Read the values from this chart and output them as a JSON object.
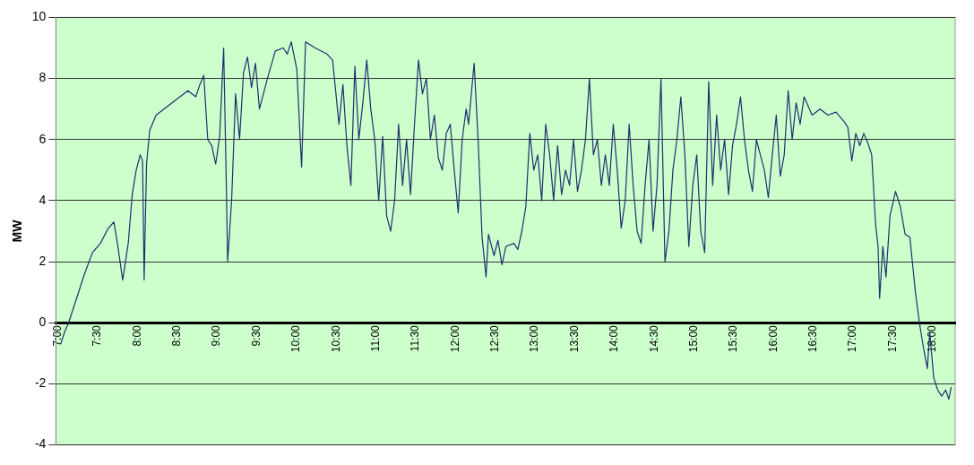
{
  "chart_data": {
    "type": "line",
    "ylabel": "MW",
    "grid": "y",
    "legend": false,
    "marker": "none",
    "line_style": "solid",
    "xlim": [
      6.94,
      18.25
    ],
    "ylim": [
      -4,
      10
    ],
    "yticks": [
      -4,
      -2,
      0,
      2,
      4,
      6,
      8,
      10
    ],
    "xticks": [
      {
        "value": 7,
        "label": "7:00"
      },
      {
        "value": 7.5,
        "label": "7:30"
      },
      {
        "value": 8,
        "label": "8:00"
      },
      {
        "value": 8.5,
        "label": "8:30"
      },
      {
        "value": 9,
        "label": "9:00"
      },
      {
        "value": 9.5,
        "label": "9:30"
      },
      {
        "value": 10,
        "label": "10:00"
      },
      {
        "value": 10.5,
        "label": "10:30"
      },
      {
        "value": 11,
        "label": "11:00"
      },
      {
        "value": 11.5,
        "label": "11:30"
      },
      {
        "value": 12,
        "label": "12:00"
      },
      {
        "value": 12.5,
        "label": "12:30"
      },
      {
        "value": 13,
        "label": "13:00"
      },
      {
        "value": 13.5,
        "label": "13:30"
      },
      {
        "value": 14,
        "label": "14:00"
      },
      {
        "value": 14.5,
        "label": "14:30"
      },
      {
        "value": 15,
        "label": "15:00"
      },
      {
        "value": 15.5,
        "label": "15:30"
      },
      {
        "value": 16,
        "label": "16:00"
      },
      {
        "value": 16.5,
        "label": "16:30"
      },
      {
        "value": 17,
        "label": "17:00"
      },
      {
        "value": 17.5,
        "label": "17:30"
      },
      {
        "value": 18,
        "label": "18:00"
      }
    ],
    "x": [
      7.0,
      7.05,
      7.1,
      7.2,
      7.3,
      7.4,
      7.5,
      7.6,
      7.67,
      7.72,
      7.78,
      7.85,
      7.9,
      7.95,
      8.0,
      8.03,
      8.05,
      8.08,
      8.12,
      8.2,
      8.35,
      8.5,
      8.6,
      8.7,
      8.75,
      8.8,
      8.85,
      8.9,
      8.95,
      9.0,
      9.05,
      9.08,
      9.1,
      9.15,
      9.2,
      9.25,
      9.3,
      9.35,
      9.4,
      9.45,
      9.5,
      9.55,
      9.6,
      9.7,
      9.8,
      9.85,
      9.9,
      9.97,
      10.03,
      10.08,
      10.2,
      10.35,
      10.42,
      10.5,
      10.55,
      10.6,
      10.65,
      10.7,
      10.75,
      10.8,
      10.85,
      10.9,
      10.95,
      11.0,
      11.05,
      11.1,
      11.15,
      11.2,
      11.25,
      11.3,
      11.35,
      11.4,
      11.45,
      11.5,
      11.55,
      11.6,
      11.65,
      11.7,
      11.75,
      11.8,
      11.85,
      11.9,
      11.95,
      12.0,
      12.05,
      12.1,
      12.13,
      12.2,
      12.25,
      12.3,
      12.35,
      12.38,
      12.45,
      12.5,
      12.55,
      12.6,
      12.7,
      12.75,
      12.8,
      12.85,
      12.9,
      12.95,
      13.0,
      13.05,
      13.1,
      13.15,
      13.2,
      13.25,
      13.3,
      13.35,
      13.4,
      13.45,
      13.5,
      13.55,
      13.6,
      13.65,
      13.7,
      13.75,
      13.8,
      13.85,
      13.9,
      13.95,
      14.0,
      14.05,
      14.1,
      14.15,
      14.2,
      14.25,
      14.3,
      14.35,
      14.4,
      14.45,
      14.5,
      14.55,
      14.6,
      14.65,
      14.7,
      14.75,
      14.8,
      14.85,
      14.9,
      14.95,
      15.0,
      15.05,
      15.1,
      15.15,
      15.2,
      15.25,
      15.3,
      15.35,
      15.4,
      15.45,
      15.5,
      15.55,
      15.6,
      15.65,
      15.7,
      15.75,
      15.8,
      15.85,
      15.9,
      15.95,
      16.0,
      16.05,
      16.1,
      16.15,
      16.2,
      16.25,
      16.3,
      16.35,
      16.45,
      16.55,
      16.65,
      16.75,
      16.85,
      16.9,
      16.95,
      17.0,
      17.05,
      17.1,
      17.15,
      17.2,
      17.25,
      17.28,
      17.3,
      17.34,
      17.38,
      17.43,
      17.5,
      17.56,
      17.62,
      17.68,
      17.75,
      17.8,
      17.85,
      17.9,
      17.93,
      17.98,
      18.03,
      18.08,
      18.13,
      18.17,
      18.2
    ],
    "series": [
      {
        "color": "#1f2f6e",
        "values": [
          -0.7,
          -0.3,
          0,
          0.8,
          1.6,
          2.3,
          2.6,
          3.1,
          3.3,
          2.5,
          1.4,
          2.6,
          4.2,
          5.0,
          5.5,
          5.3,
          1.4,
          5.2,
          6.3,
          6.8,
          7.1,
          7.4,
          7.6,
          7.4,
          7.8,
          8.1,
          6.0,
          5.8,
          5.2,
          6.1,
          9.0,
          5.0,
          2.0,
          4.0,
          7.5,
          6.0,
          8.2,
          8.7,
          7.7,
          8.5,
          7.0,
          7.5,
          8.0,
          8.9,
          9.0,
          8.8,
          9.2,
          8.3,
          5.1,
          9.2,
          9.0,
          8.8,
          8.6,
          6.5,
          7.8,
          5.8,
          4.5,
          8.4,
          6.0,
          7.2,
          8.6,
          7.0,
          6.0,
          4.0,
          6.1,
          3.5,
          3.0,
          4.0,
          6.5,
          4.5,
          6.0,
          4.2,
          6.5,
          8.6,
          7.5,
          8.0,
          6.0,
          6.8,
          5.4,
          5.0,
          6.2,
          6.5,
          5.0,
          3.6,
          6.0,
          7.0,
          6.5,
          8.5,
          6.0,
          2.8,
          1.5,
          2.9,
          2.2,
          2.7,
          1.9,
          2.5,
          2.6,
          2.4,
          3.0,
          3.8,
          6.2,
          5.0,
          5.5,
          4.0,
          6.5,
          5.5,
          4.0,
          5.8,
          4.2,
          5.0,
          4.5,
          6.0,
          4.3,
          5.0,
          6.0,
          8.0,
          5.5,
          6.0,
          4.5,
          5.5,
          4.5,
          6.5,
          5.0,
          3.1,
          4.0,
          6.5,
          4.5,
          3.0,
          2.6,
          4.5,
          6.0,
          3.0,
          4.5,
          8.0,
          2.0,
          3.0,
          5.0,
          6.0,
          7.4,
          5.5,
          2.5,
          4.5,
          5.5,
          3.0,
          2.3,
          7.9,
          4.5,
          6.8,
          5.0,
          6.0,
          4.2,
          5.8,
          6.5,
          7.4,
          6.0,
          5.0,
          4.3,
          6.0,
          5.5,
          5.0,
          4.1,
          5.5,
          6.8,
          4.8,
          5.5,
          7.6,
          6.0,
          7.2,
          6.5,
          7.4,
          6.8,
          7.0,
          6.8,
          6.9,
          6.6,
          6.4,
          5.3,
          6.2,
          5.8,
          6.2,
          5.9,
          5.5,
          3.2,
          2.5,
          0.8,
          2.5,
          1.5,
          3.5,
          4.3,
          3.8,
          2.9,
          2.8,
          1.0,
          0,
          -0.8,
          -1.5,
          -0.3,
          -1.8,
          -2.2,
          -2.4,
          -2.2,
          -2.5,
          -2.1
        ]
      }
    ]
  }
}
